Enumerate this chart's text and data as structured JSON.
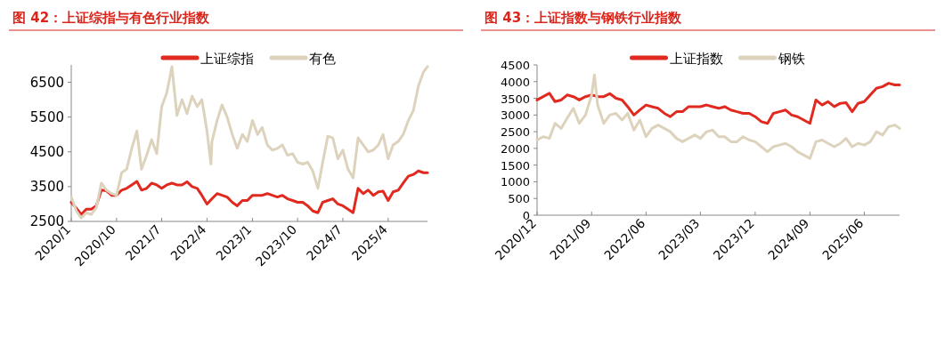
{
  "chart_data": [
    {
      "type": "line",
      "title": "图 42：上证综指与有色行业指数",
      "legend": "top",
      "grid": false,
      "xlim": [
        "2020-01",
        "2025-11-25"
      ],
      "ylim": [
        2500,
        7000
      ],
      "yticks": [
        2500,
        3500,
        4500,
        5500,
        6500
      ],
      "xticks": [
        {
          "value": "2020-01",
          "label": "2020/1"
        },
        {
          "value": "2020-10",
          "label": "2020/10"
        },
        {
          "value": "2021-07",
          "label": "2021/7"
        },
        {
          "value": "2022-04",
          "label": "2022/4"
        },
        {
          "value": "2023-01",
          "label": "2023/1"
        },
        {
          "value": "2023-10",
          "label": "2023/10"
        },
        {
          "value": "2024-07",
          "label": "2024/7"
        },
        {
          "value": "2025-04",
          "label": "2025/4"
        }
      ],
      "series": [
        {
          "name": "上证综指",
          "color": "#e02a20",
          "x": [
            "2020-01",
            "2020-02",
            "2020-03",
            "2020-04",
            "2020-05",
            "2020-06",
            "2020-07",
            "2020-08",
            "2020-09",
            "2020-10",
            "2020-11",
            "2020-12",
            "2021-01",
            "2021-02",
            "2021-03",
            "2021-04",
            "2021-05",
            "2021-06",
            "2021-07",
            "2021-08",
            "2021-09",
            "2021-10",
            "2021-11",
            "2021-12",
            "2022-01",
            "2022-02",
            "2022-03",
            "2022-04",
            "2022-05",
            "2022-06",
            "2022-07",
            "2022-08",
            "2022-09",
            "2022-10",
            "2022-11",
            "2022-12",
            "2023-01",
            "2023-02",
            "2023-03",
            "2023-04",
            "2023-05",
            "2023-06",
            "2023-07",
            "2023-08",
            "2023-09",
            "2023-10",
            "2023-11",
            "2023-12",
            "2024-01",
            "2024-02",
            "2024-03",
            "2024-04",
            "2024-05",
            "2024-06",
            "2024-07",
            "2024-08",
            "2024-09",
            "2024-10",
            "2024-11",
            "2024-12",
            "2025-01",
            "2025-02",
            "2025-03",
            "2025-04",
            "2025-05",
            "2025-06",
            "2025-07",
            "2025-08",
            "2025-09",
            "2025-10",
            "2025-11",
            "2025-11-25"
          ],
          "values": [
            3050,
            2880,
            2700,
            2850,
            2850,
            2950,
            3400,
            3380,
            3250,
            3250,
            3400,
            3450,
            3550,
            3650,
            3400,
            3450,
            3600,
            3550,
            3450,
            3550,
            3600,
            3550,
            3550,
            3640,
            3500,
            3450,
            3250,
            3000,
            3150,
            3300,
            3250,
            3200,
            3050,
            2950,
            3100,
            3100,
            3250,
            3250,
            3250,
            3300,
            3250,
            3200,
            3250,
            3150,
            3100,
            3050,
            3050,
            2950,
            2800,
            2750,
            3050,
            3100,
            3150,
            3000,
            2950,
            2850,
            2750,
            3450,
            3300,
            3400,
            3250,
            3350,
            3370,
            3100,
            3350,
            3400,
            3600,
            3800,
            3850,
            3950,
            3900,
            3900
          ]
        },
        {
          "name": "有色",
          "color": "#ddd3bd",
          "x": [
            "2020-01",
            "2020-02",
            "2020-03",
            "2020-04",
            "2020-05",
            "2020-06",
            "2020-07",
            "2020-08",
            "2020-09",
            "2020-10",
            "2020-11",
            "2020-12",
            "2021-01",
            "2021-02",
            "2021-03",
            "2021-04",
            "2021-05",
            "2021-06",
            "2021-07",
            "2021-08",
            "2021-09",
            "2021-10",
            "2021-11",
            "2021-12",
            "2022-01",
            "2022-02",
            "2022-03",
            "2022-04",
            "2022-04-25",
            "2022-05",
            "2022-06",
            "2022-07",
            "2022-08",
            "2022-09",
            "2022-10",
            "2022-11",
            "2022-12",
            "2023-01",
            "2023-02",
            "2023-03",
            "2023-04",
            "2023-05",
            "2023-06",
            "2023-07",
            "2023-08",
            "2023-09",
            "2023-10",
            "2023-11",
            "2023-12",
            "2024-01",
            "2024-02",
            "2024-03",
            "2024-04",
            "2024-05",
            "2024-06",
            "2024-07",
            "2024-08",
            "2024-09",
            "2024-10",
            "2024-11",
            "2024-12",
            "2025-01",
            "2025-02",
            "2025-03",
            "2025-04",
            "2025-05",
            "2025-06",
            "2025-07",
            "2025-08",
            "2025-09",
            "2025-10",
            "2025-11",
            "2025-11-25"
          ],
          "values": [
            3200,
            2800,
            2600,
            2750,
            2700,
            2900,
            3600,
            3400,
            3300,
            3250,
            3900,
            4000,
            4600,
            5100,
            4000,
            4400,
            4850,
            4450,
            5800,
            6200,
            6950,
            5550,
            6000,
            5600,
            6100,
            5800,
            6000,
            5100,
            4150,
            4800,
            5400,
            5850,
            5500,
            5000,
            4600,
            5000,
            4800,
            5400,
            5000,
            5200,
            4700,
            4550,
            4600,
            4700,
            4400,
            4450,
            4200,
            4150,
            4200,
            3950,
            3450,
            4200,
            4950,
            4900,
            4300,
            4550,
            4000,
            3750,
            4900,
            4700,
            4500,
            4550,
            4700,
            5000,
            4300,
            4700,
            4800,
            5000,
            5400,
            5700,
            6400,
            6800,
            6950
          ]
        }
      ]
    },
    {
      "type": "line",
      "title": "图 43：上证指数与钢铁行业指数",
      "legend": "top",
      "grid": false,
      "xlim": [
        "2020-12",
        "2025-11-25"
      ],
      "ylim": [
        0,
        4500
      ],
      "yticks": [
        0,
        500,
        1000,
        1500,
        2000,
        2500,
        3000,
        3500,
        4000,
        4500
      ],
      "xticks": [
        {
          "value": "2020-12",
          "label": "2020/12"
        },
        {
          "value": "2021-09",
          "label": "2021/09"
        },
        {
          "value": "2022-06",
          "label": "2022/06"
        },
        {
          "value": "2023-03",
          "label": "2023/03"
        },
        {
          "value": "2023-12",
          "label": "2023/12"
        },
        {
          "value": "2024-09",
          "label": "2024/09"
        },
        {
          "value": "2025-06",
          "label": "2025/06"
        }
      ],
      "series": [
        {
          "name": "上证指数",
          "color": "#e02a20",
          "x": [
            "2020-12",
            "2021-01",
            "2021-02",
            "2021-03",
            "2021-04",
            "2021-05",
            "2021-06",
            "2021-07",
            "2021-08",
            "2021-09",
            "2021-10",
            "2021-11",
            "2021-12",
            "2022-01",
            "2022-02",
            "2022-03",
            "2022-04",
            "2022-05",
            "2022-06",
            "2022-07",
            "2022-08",
            "2022-09",
            "2022-10",
            "2022-11",
            "2022-12",
            "2023-01",
            "2023-02",
            "2023-03",
            "2023-04",
            "2023-05",
            "2023-06",
            "2023-07",
            "2023-08",
            "2023-09",
            "2023-10",
            "2023-11",
            "2023-12",
            "2024-01",
            "2024-02",
            "2024-03",
            "2024-04",
            "2024-05",
            "2024-06",
            "2024-07",
            "2024-08",
            "2024-09",
            "2024-10",
            "2024-11",
            "2024-12",
            "2025-01",
            "2025-02",
            "2025-03",
            "2025-04",
            "2025-05",
            "2025-06",
            "2025-07",
            "2025-08",
            "2025-09",
            "2025-10",
            "2025-11",
            "2025-11-25"
          ],
          "values": [
            3450,
            3550,
            3650,
            3400,
            3450,
            3600,
            3550,
            3450,
            3550,
            3600,
            3550,
            3550,
            3640,
            3500,
            3450,
            3250,
            3000,
            3150,
            3300,
            3250,
            3200,
            3050,
            2950,
            3100,
            3100,
            3250,
            3250,
            3250,
            3300,
            3250,
            3200,
            3250,
            3150,
            3100,
            3050,
            3050,
            2950,
            2800,
            2750,
            3050,
            3100,
            3150,
            3000,
            2950,
            2850,
            2750,
            3450,
            3300,
            3400,
            3250,
            3350,
            3370,
            3100,
            3350,
            3400,
            3600,
            3800,
            3850,
            3950,
            3900,
            3900
          ]
        },
        {
          "name": "钢铁",
          "color": "#ddd3bd",
          "x": [
            "2020-12",
            "2021-01",
            "2021-02",
            "2021-03",
            "2021-04",
            "2021-05",
            "2021-06",
            "2021-07",
            "2021-08",
            "2021-09",
            "2021-09-15",
            "2021-10",
            "2021-11",
            "2021-12",
            "2022-01",
            "2022-02",
            "2022-03",
            "2022-04",
            "2022-05",
            "2022-06",
            "2022-07",
            "2022-08",
            "2022-09",
            "2022-10",
            "2022-11",
            "2022-12",
            "2023-01",
            "2023-02",
            "2023-03",
            "2023-04",
            "2023-05",
            "2023-06",
            "2023-07",
            "2023-08",
            "2023-09",
            "2023-10",
            "2023-11",
            "2023-12",
            "2024-01",
            "2024-02",
            "2024-03",
            "2024-04",
            "2024-05",
            "2024-06",
            "2024-07",
            "2024-08",
            "2024-09",
            "2024-10",
            "2024-11",
            "2024-12",
            "2025-01",
            "2025-02",
            "2025-03",
            "2025-04",
            "2025-05",
            "2025-06",
            "2025-07",
            "2025-08",
            "2025-09",
            "2025-10",
            "2025-11",
            "2025-11-25"
          ],
          "values": [
            2250,
            2350,
            2300,
            2750,
            2600,
            2900,
            3200,
            2750,
            3000,
            3600,
            4200,
            3300,
            2750,
            3000,
            3050,
            2850,
            3050,
            2550,
            2850,
            2350,
            2600,
            2700,
            2600,
            2500,
            2300,
            2200,
            2300,
            2400,
            2300,
            2500,
            2550,
            2350,
            2350,
            2200,
            2200,
            2350,
            2250,
            2200,
            2050,
            1900,
            2050,
            2100,
            2150,
            2050,
            1900,
            1800,
            1700,
            2200,
            2250,
            2150,
            2050,
            2150,
            2300,
            2050,
            2150,
            2100,
            2200,
            2500,
            2400,
            2650,
            2700,
            2600
          ]
        }
      ]
    }
  ]
}
